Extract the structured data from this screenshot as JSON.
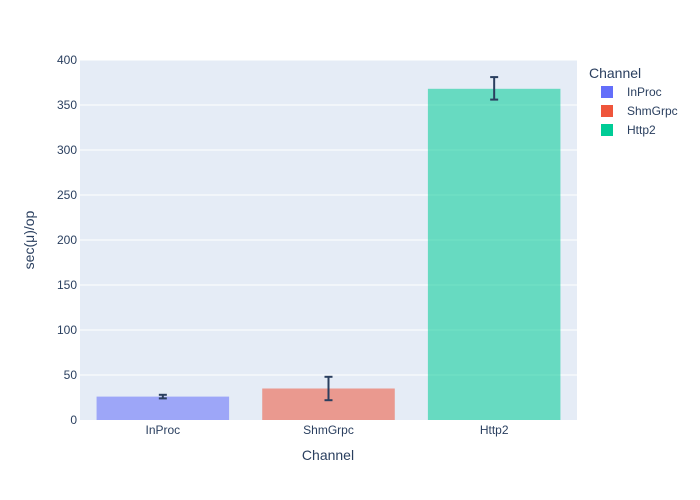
{
  "chart_data": {
    "type": "bar",
    "title": "",
    "xlabel": "Channel",
    "ylabel": "sec(μ)/op",
    "categories": [
      "InProc",
      "ShmGrpc",
      "Http2"
    ],
    "values": [
      26,
      35,
      368
    ],
    "error_low": [
      2,
      13,
      12
    ],
    "error_high": [
      2,
      13,
      13
    ],
    "colors": [
      "#636efa",
      "#EF553B",
      "#00cc96"
    ],
    "ylim": [
      0,
      400
    ],
    "yticks": [
      0,
      50,
      100,
      150,
      200,
      250,
      300,
      350,
      400
    ],
    "grid": true,
    "legend": {
      "title": "Channel",
      "position": "top-right",
      "entries": [
        "InProc",
        "ShmGrpc",
        "Http2"
      ]
    }
  }
}
